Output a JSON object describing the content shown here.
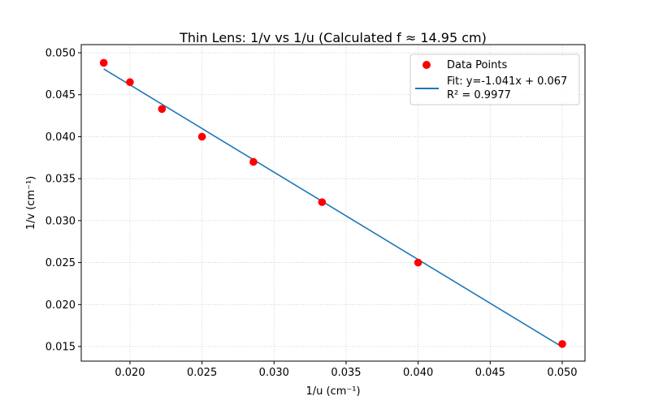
{
  "chart_data": {
    "type": "scatter",
    "title": "Thin Lens: 1/v vs 1/u (Calculated f ≈ 14.95 cm)",
    "xlabel": "1/u (cm⁻¹)",
    "ylabel": "1/v (cm⁻¹)",
    "xlim": [
      0.01662,
      0.05158
    ],
    "ylim": [
      0.01326,
      0.05097
    ],
    "xticks": [
      0.02,
      0.025,
      0.03,
      0.035,
      0.04,
      0.045,
      0.05
    ],
    "xtick_labels": [
      "0.020",
      "0.025",
      "0.030",
      "0.035",
      "0.040",
      "0.045",
      "0.050"
    ],
    "yticks": [
      0.015,
      0.02,
      0.025,
      0.03,
      0.035,
      0.04,
      0.045,
      0.05
    ],
    "ytick_labels": [
      "0.015",
      "0.020",
      "0.025",
      "0.030",
      "0.035",
      "0.040",
      "0.045",
      "0.050"
    ],
    "grid": true,
    "legend_position": "top-right",
    "series": [
      {
        "name": "Data Points",
        "kind": "scatter",
        "color": "#ff0000",
        "x": [
          0.01818,
          0.02,
          0.02222,
          0.025,
          0.02857,
          0.03333,
          0.04,
          0.05
        ],
        "y": [
          0.0488,
          0.0465,
          0.0433,
          0.04,
          0.037,
          0.0322,
          0.025,
          0.0153
        ]
      },
      {
        "name": "Fit: y=-1.041x + 0.067",
        "name_line2": "R² = 0.9977",
        "kind": "line",
        "color": "#1f77b4",
        "slope": -1.041,
        "intercept": 0.067,
        "x_range": [
          0.01818,
          0.05
        ]
      }
    ]
  }
}
